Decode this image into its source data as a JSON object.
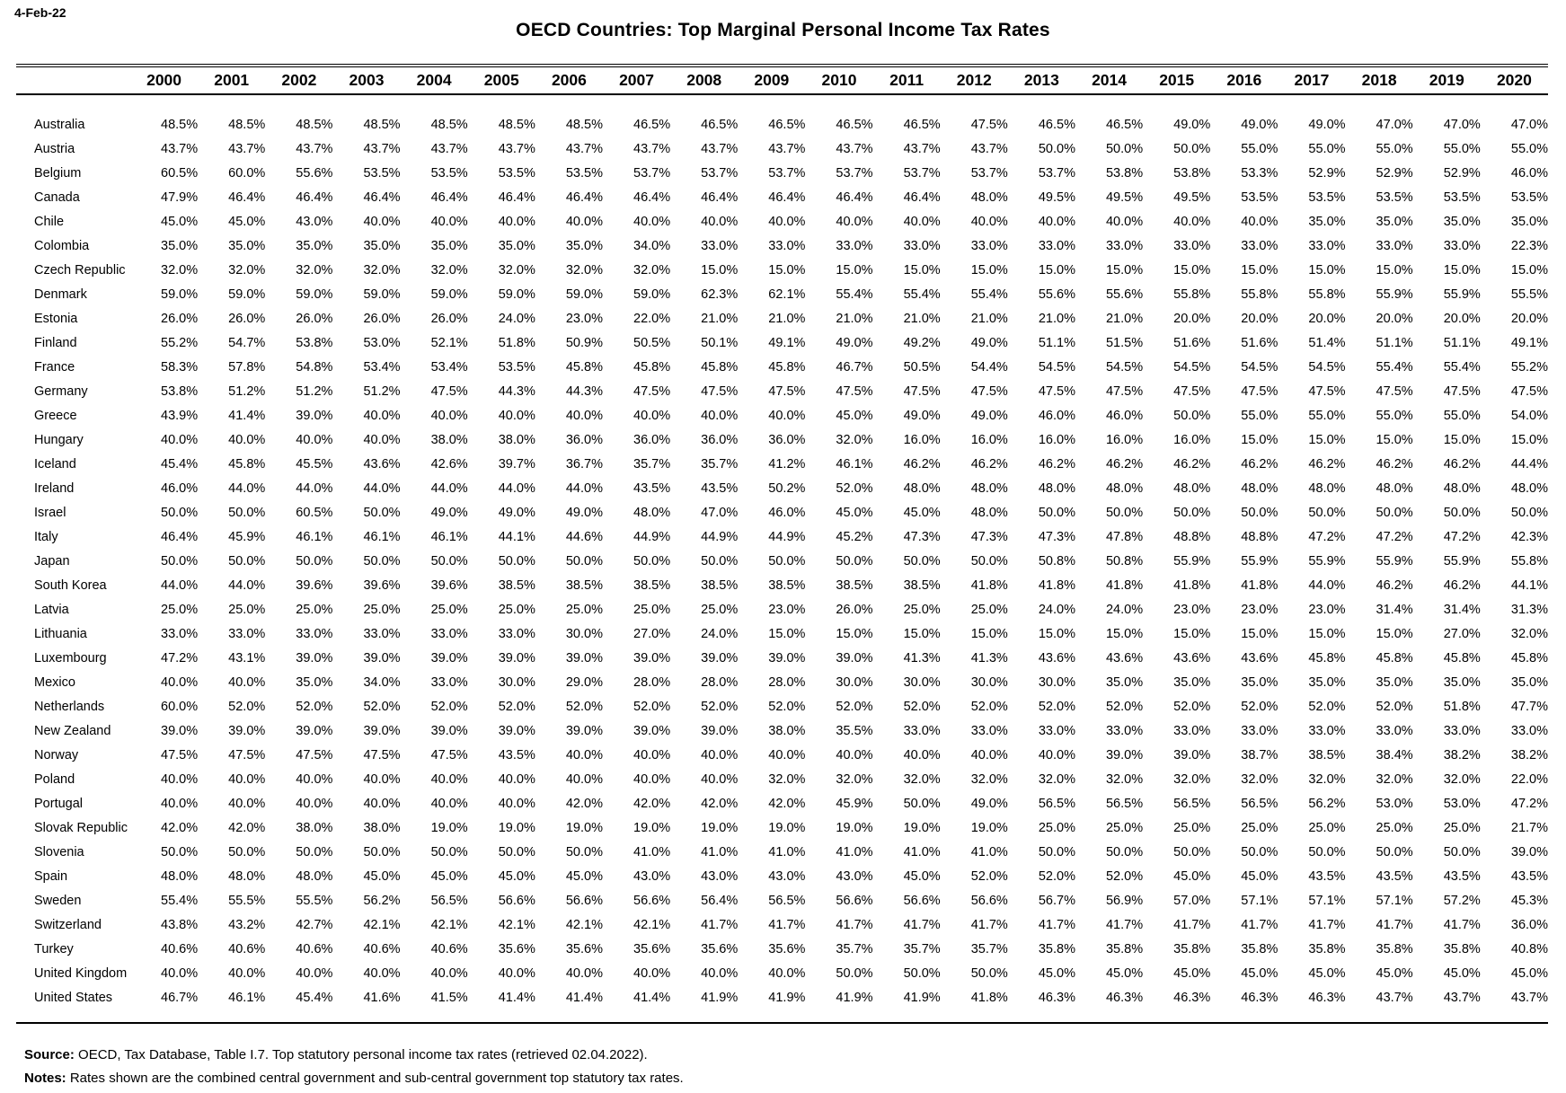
{
  "page": {
    "date_label": "4-Feb-22",
    "title": "OECD Countries: Top Marginal Personal Income Tax Rates",
    "footer": {
      "source_label": "Source:",
      "source_text": " OECD, Tax Database, Table I.7. Top statutory personal income tax rates (retrieved 02.04.2022).",
      "notes_label": "Notes:",
      "notes_text": " Rates shown are the combined central government and sub-central government top statutory tax rates."
    }
  },
  "chart_data": {
    "type": "table",
    "title": "OECD Countries: Top Marginal Personal Income Tax Rates",
    "unit": "percent",
    "value_format": "one_decimal_percent",
    "columns": [
      "2000",
      "2001",
      "2002",
      "2003",
      "2004",
      "2005",
      "2006",
      "2007",
      "2008",
      "2009",
      "2010",
      "2011",
      "2012",
      "2013",
      "2014",
      "2015",
      "2016",
      "2017",
      "2018",
      "2019",
      "2020"
    ],
    "rows": [
      {
        "country": "Australia",
        "values": [
          48.5,
          48.5,
          48.5,
          48.5,
          48.5,
          48.5,
          48.5,
          46.5,
          46.5,
          46.5,
          46.5,
          46.5,
          47.5,
          46.5,
          46.5,
          49.0,
          49.0,
          49.0,
          47.0,
          47.0,
          47.0
        ]
      },
      {
        "country": "Austria",
        "values": [
          43.7,
          43.7,
          43.7,
          43.7,
          43.7,
          43.7,
          43.7,
          43.7,
          43.7,
          43.7,
          43.7,
          43.7,
          43.7,
          50.0,
          50.0,
          50.0,
          55.0,
          55.0,
          55.0,
          55.0,
          55.0
        ]
      },
      {
        "country": "Belgium",
        "values": [
          60.5,
          60.0,
          55.6,
          53.5,
          53.5,
          53.5,
          53.5,
          53.7,
          53.7,
          53.7,
          53.7,
          53.7,
          53.7,
          53.7,
          53.8,
          53.8,
          53.3,
          52.9,
          52.9,
          52.9,
          46.0
        ]
      },
      {
        "country": "Canada",
        "values": [
          47.9,
          46.4,
          46.4,
          46.4,
          46.4,
          46.4,
          46.4,
          46.4,
          46.4,
          46.4,
          46.4,
          46.4,
          48.0,
          49.5,
          49.5,
          49.5,
          53.5,
          53.5,
          53.5,
          53.5,
          53.5
        ]
      },
      {
        "country": "Chile",
        "values": [
          45.0,
          45.0,
          43.0,
          40.0,
          40.0,
          40.0,
          40.0,
          40.0,
          40.0,
          40.0,
          40.0,
          40.0,
          40.0,
          40.0,
          40.0,
          40.0,
          40.0,
          35.0,
          35.0,
          35.0,
          35.0
        ]
      },
      {
        "country": "Colombia",
        "values": [
          35.0,
          35.0,
          35.0,
          35.0,
          35.0,
          35.0,
          35.0,
          34.0,
          33.0,
          33.0,
          33.0,
          33.0,
          33.0,
          33.0,
          33.0,
          33.0,
          33.0,
          33.0,
          33.0,
          33.0,
          22.3
        ]
      },
      {
        "country": "Czech Republic",
        "values": [
          32.0,
          32.0,
          32.0,
          32.0,
          32.0,
          32.0,
          32.0,
          32.0,
          15.0,
          15.0,
          15.0,
          15.0,
          15.0,
          15.0,
          15.0,
          15.0,
          15.0,
          15.0,
          15.0,
          15.0,
          15.0
        ]
      },
      {
        "country": "Denmark",
        "values": [
          59.0,
          59.0,
          59.0,
          59.0,
          59.0,
          59.0,
          59.0,
          59.0,
          62.3,
          62.1,
          55.4,
          55.4,
          55.4,
          55.6,
          55.6,
          55.8,
          55.8,
          55.8,
          55.9,
          55.9,
          55.5
        ]
      },
      {
        "country": "Estonia",
        "values": [
          26.0,
          26.0,
          26.0,
          26.0,
          26.0,
          24.0,
          23.0,
          22.0,
          21.0,
          21.0,
          21.0,
          21.0,
          21.0,
          21.0,
          21.0,
          20.0,
          20.0,
          20.0,
          20.0,
          20.0,
          20.0
        ]
      },
      {
        "country": "Finland",
        "values": [
          55.2,
          54.7,
          53.8,
          53.0,
          52.1,
          51.8,
          50.9,
          50.5,
          50.1,
          49.1,
          49.0,
          49.2,
          49.0,
          51.1,
          51.5,
          51.6,
          51.6,
          51.4,
          51.1,
          51.1,
          49.1
        ]
      },
      {
        "country": "France",
        "values": [
          58.3,
          57.8,
          54.8,
          53.4,
          53.4,
          53.5,
          45.8,
          45.8,
          45.8,
          45.8,
          46.7,
          50.5,
          54.4,
          54.5,
          54.5,
          54.5,
          54.5,
          54.5,
          55.4,
          55.4,
          55.2
        ]
      },
      {
        "country": "Germany",
        "values": [
          53.8,
          51.2,
          51.2,
          51.2,
          47.5,
          44.3,
          44.3,
          47.5,
          47.5,
          47.5,
          47.5,
          47.5,
          47.5,
          47.5,
          47.5,
          47.5,
          47.5,
          47.5,
          47.5,
          47.5,
          47.5
        ]
      },
      {
        "country": "Greece",
        "values": [
          43.9,
          41.4,
          39.0,
          40.0,
          40.0,
          40.0,
          40.0,
          40.0,
          40.0,
          40.0,
          45.0,
          49.0,
          49.0,
          46.0,
          46.0,
          50.0,
          55.0,
          55.0,
          55.0,
          55.0,
          54.0
        ]
      },
      {
        "country": "Hungary",
        "values": [
          40.0,
          40.0,
          40.0,
          40.0,
          38.0,
          38.0,
          36.0,
          36.0,
          36.0,
          36.0,
          32.0,
          16.0,
          16.0,
          16.0,
          16.0,
          16.0,
          15.0,
          15.0,
          15.0,
          15.0,
          15.0
        ]
      },
      {
        "country": "Iceland",
        "values": [
          45.4,
          45.8,
          45.5,
          43.6,
          42.6,
          39.7,
          36.7,
          35.7,
          35.7,
          41.2,
          46.1,
          46.2,
          46.2,
          46.2,
          46.2,
          46.2,
          46.2,
          46.2,
          46.2,
          46.2,
          44.4
        ]
      },
      {
        "country": "Ireland",
        "values": [
          46.0,
          44.0,
          44.0,
          44.0,
          44.0,
          44.0,
          44.0,
          43.5,
          43.5,
          50.2,
          52.0,
          48.0,
          48.0,
          48.0,
          48.0,
          48.0,
          48.0,
          48.0,
          48.0,
          48.0,
          48.0
        ]
      },
      {
        "country": "Israel",
        "values": [
          50.0,
          50.0,
          60.5,
          50.0,
          49.0,
          49.0,
          49.0,
          48.0,
          47.0,
          46.0,
          45.0,
          45.0,
          48.0,
          50.0,
          50.0,
          50.0,
          50.0,
          50.0,
          50.0,
          50.0,
          50.0
        ]
      },
      {
        "country": "Italy",
        "values": [
          46.4,
          45.9,
          46.1,
          46.1,
          46.1,
          44.1,
          44.6,
          44.9,
          44.9,
          44.9,
          45.2,
          47.3,
          47.3,
          47.3,
          47.8,
          48.8,
          48.8,
          47.2,
          47.2,
          47.2,
          42.3
        ]
      },
      {
        "country": "Japan",
        "values": [
          50.0,
          50.0,
          50.0,
          50.0,
          50.0,
          50.0,
          50.0,
          50.0,
          50.0,
          50.0,
          50.0,
          50.0,
          50.0,
          50.8,
          50.8,
          55.9,
          55.9,
          55.9,
          55.9,
          55.9,
          55.8
        ]
      },
      {
        "country": "South Korea",
        "values": [
          44.0,
          44.0,
          39.6,
          39.6,
          39.6,
          38.5,
          38.5,
          38.5,
          38.5,
          38.5,
          38.5,
          38.5,
          41.8,
          41.8,
          41.8,
          41.8,
          41.8,
          44.0,
          46.2,
          46.2,
          44.1
        ]
      },
      {
        "country": "Latvia",
        "values": [
          25.0,
          25.0,
          25.0,
          25.0,
          25.0,
          25.0,
          25.0,
          25.0,
          25.0,
          23.0,
          26.0,
          25.0,
          25.0,
          24.0,
          24.0,
          23.0,
          23.0,
          23.0,
          31.4,
          31.4,
          31.3
        ]
      },
      {
        "country": "Lithuania",
        "values": [
          33.0,
          33.0,
          33.0,
          33.0,
          33.0,
          33.0,
          30.0,
          27.0,
          24.0,
          15.0,
          15.0,
          15.0,
          15.0,
          15.0,
          15.0,
          15.0,
          15.0,
          15.0,
          15.0,
          27.0,
          32.0
        ]
      },
      {
        "country": "Luxembourg",
        "values": [
          47.2,
          43.1,
          39.0,
          39.0,
          39.0,
          39.0,
          39.0,
          39.0,
          39.0,
          39.0,
          39.0,
          41.3,
          41.3,
          43.6,
          43.6,
          43.6,
          43.6,
          45.8,
          45.8,
          45.8,
          45.8
        ]
      },
      {
        "country": "Mexico",
        "values": [
          40.0,
          40.0,
          35.0,
          34.0,
          33.0,
          30.0,
          29.0,
          28.0,
          28.0,
          28.0,
          30.0,
          30.0,
          30.0,
          30.0,
          35.0,
          35.0,
          35.0,
          35.0,
          35.0,
          35.0,
          35.0
        ]
      },
      {
        "country": "Netherlands",
        "values": [
          60.0,
          52.0,
          52.0,
          52.0,
          52.0,
          52.0,
          52.0,
          52.0,
          52.0,
          52.0,
          52.0,
          52.0,
          52.0,
          52.0,
          52.0,
          52.0,
          52.0,
          52.0,
          52.0,
          51.8,
          47.7
        ]
      },
      {
        "country": "New Zealand",
        "values": [
          39.0,
          39.0,
          39.0,
          39.0,
          39.0,
          39.0,
          39.0,
          39.0,
          39.0,
          38.0,
          35.5,
          33.0,
          33.0,
          33.0,
          33.0,
          33.0,
          33.0,
          33.0,
          33.0,
          33.0,
          33.0
        ]
      },
      {
        "country": "Norway",
        "values": [
          47.5,
          47.5,
          47.5,
          47.5,
          47.5,
          43.5,
          40.0,
          40.0,
          40.0,
          40.0,
          40.0,
          40.0,
          40.0,
          40.0,
          39.0,
          39.0,
          38.7,
          38.5,
          38.4,
          38.2,
          38.2
        ]
      },
      {
        "country": "Poland",
        "values": [
          40.0,
          40.0,
          40.0,
          40.0,
          40.0,
          40.0,
          40.0,
          40.0,
          40.0,
          32.0,
          32.0,
          32.0,
          32.0,
          32.0,
          32.0,
          32.0,
          32.0,
          32.0,
          32.0,
          32.0,
          22.0
        ]
      },
      {
        "country": "Portugal",
        "values": [
          40.0,
          40.0,
          40.0,
          40.0,
          40.0,
          40.0,
          42.0,
          42.0,
          42.0,
          42.0,
          45.9,
          50.0,
          49.0,
          56.5,
          56.5,
          56.5,
          56.5,
          56.2,
          53.0,
          53.0,
          47.2
        ]
      },
      {
        "country": "Slovak Republic",
        "values": [
          42.0,
          42.0,
          38.0,
          38.0,
          19.0,
          19.0,
          19.0,
          19.0,
          19.0,
          19.0,
          19.0,
          19.0,
          19.0,
          25.0,
          25.0,
          25.0,
          25.0,
          25.0,
          25.0,
          25.0,
          21.7
        ]
      },
      {
        "country": "Slovenia",
        "values": [
          50.0,
          50.0,
          50.0,
          50.0,
          50.0,
          50.0,
          50.0,
          41.0,
          41.0,
          41.0,
          41.0,
          41.0,
          41.0,
          50.0,
          50.0,
          50.0,
          50.0,
          50.0,
          50.0,
          50.0,
          39.0
        ]
      },
      {
        "country": "Spain",
        "values": [
          48.0,
          48.0,
          48.0,
          45.0,
          45.0,
          45.0,
          45.0,
          43.0,
          43.0,
          43.0,
          43.0,
          45.0,
          52.0,
          52.0,
          52.0,
          45.0,
          45.0,
          43.5,
          43.5,
          43.5,
          43.5
        ]
      },
      {
        "country": "Sweden",
        "values": [
          55.4,
          55.5,
          55.5,
          56.2,
          56.5,
          56.6,
          56.6,
          56.6,
          56.4,
          56.5,
          56.6,
          56.6,
          56.6,
          56.7,
          56.9,
          57.0,
          57.1,
          57.1,
          57.1,
          57.2,
          45.3
        ]
      },
      {
        "country": "Switzerland",
        "values": [
          43.8,
          43.2,
          42.7,
          42.1,
          42.1,
          42.1,
          42.1,
          42.1,
          41.7,
          41.7,
          41.7,
          41.7,
          41.7,
          41.7,
          41.7,
          41.7,
          41.7,
          41.7,
          41.7,
          41.7,
          36.0
        ]
      },
      {
        "country": "Turkey",
        "values": [
          40.6,
          40.6,
          40.6,
          40.6,
          40.6,
          35.6,
          35.6,
          35.6,
          35.6,
          35.6,
          35.7,
          35.7,
          35.7,
          35.8,
          35.8,
          35.8,
          35.8,
          35.8,
          35.8,
          35.8,
          40.8
        ]
      },
      {
        "country": "United Kingdom",
        "values": [
          40.0,
          40.0,
          40.0,
          40.0,
          40.0,
          40.0,
          40.0,
          40.0,
          40.0,
          40.0,
          50.0,
          50.0,
          50.0,
          45.0,
          45.0,
          45.0,
          45.0,
          45.0,
          45.0,
          45.0,
          45.0
        ]
      },
      {
        "country": "United States",
        "values": [
          46.7,
          46.1,
          45.4,
          41.6,
          41.5,
          41.4,
          41.4,
          41.4,
          41.9,
          41.9,
          41.9,
          41.9,
          41.8,
          46.3,
          46.3,
          46.3,
          46.3,
          46.3,
          43.7,
          43.7,
          43.7
        ]
      }
    ]
  }
}
